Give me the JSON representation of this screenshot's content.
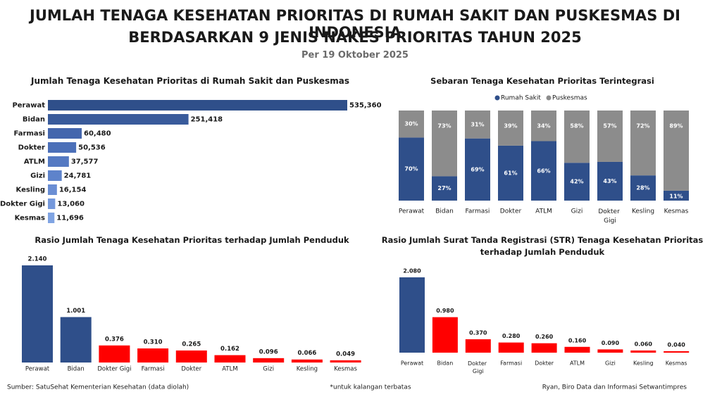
{
  "header": {
    "title_line1": "JUMLAH TENAGA KESEHATAN PRIORITAS DI RUMAH SAKIT DAN PUSKESMAS DI INDONESIA",
    "title_line2": "BERDASARKAN 9 JENIS NAKES PRIORITAS TAHUN 2025",
    "subtitle": "Per 19 Oktober 2025"
  },
  "chart_data": [
    {
      "type": "bar",
      "orientation": "horizontal",
      "title": "Jumlah Tenaga Kesehatan Prioritas di Rumah Sakit dan Puskesmas",
      "categories": [
        "Perawat",
        "Bidan",
        "Farmasi",
        "Dokter",
        "ATLM",
        "Gizi",
        "Kesling",
        "Dokter Gigi",
        "Kesmas"
      ],
      "values": [
        535360,
        251418,
        60480,
        50536,
        37577,
        24781,
        16154,
        13060,
        11696
      ],
      "value_labels": [
        "535,360",
        "251,418",
        "60,480",
        "50,536",
        "37,577",
        "24,781",
        "16,154",
        "13,060",
        "11,696"
      ],
      "colors": [
        "#2f4f8a",
        "#395b9b",
        "#4466ad",
        "#4b6fb8",
        "#5479c2",
        "#5e83cb",
        "#6a8ed4",
        "#7599dc",
        "#80a4e3"
      ]
    },
    {
      "type": "stacked_bar",
      "title": "Sebaran Tenaga Kesehatan Prioritas Terintegrasi",
      "categories": [
        "Perawat",
        "Bidan",
        "Farmasi",
        "Dokter",
        "ATLM",
        "Gizi",
        "Dokter Gigi",
        "Kesling",
        "Kesmas"
      ],
      "ylim": [
        0,
        100
      ],
      "series": [
        {
          "name": "Rumah Sakit",
          "color": "#2f4f8a",
          "values": [
            70,
            27,
            69,
            61,
            66,
            42,
            43,
            28,
            11
          ],
          "value_labels": [
            "70%",
            "27%",
            "69%",
            "61%",
            "66%",
            "42%",
            "43%",
            "28%",
            "11%"
          ]
        },
        {
          "name": "Puskesmas",
          "color": "#8c8c8c",
          "values": [
            30,
            73,
            31,
            39,
            34,
            58,
            57,
            72,
            89
          ],
          "value_labels": [
            "30%",
            "73%",
            "31%",
            "39%",
            "34%",
            "58%",
            "57%",
            "72%",
            "89%"
          ]
        }
      ]
    },
    {
      "type": "bar",
      "orientation": "vertical",
      "title": "Rasio Jumlah Tenaga Kesehatan Prioritas terhadap Jumlah Penduduk",
      "categories": [
        "Perawat",
        "Bidan",
        "Dokter Gigi",
        "Farmasi",
        "Dokter",
        "ATLM",
        "Gizi",
        "Kesling",
        "Kesmas"
      ],
      "values": [
        2.14,
        1.001,
        0.376,
        0.31,
        0.265,
        0.162,
        0.096,
        0.066,
        0.049
      ],
      "value_labels": [
        "2.140",
        "1.001",
        "0.376",
        "0.310",
        "0.265",
        "0.162",
        "0.096",
        "0.066",
        "0.049"
      ],
      "colors": [
        "#2f4f8a",
        "#2f4f8a",
        "#ff0000",
        "#ff0000",
        "#ff0000",
        "#ff0000",
        "#ff0000",
        "#ff0000",
        "#ff0000"
      ]
    },
    {
      "type": "bar",
      "orientation": "vertical",
      "title": "Rasio Jumlah Surat Tanda Registrasi (STR) Tenaga Kesehatan Prioritas terhadap Jumlah Penduduk",
      "categories": [
        "Perawat",
        "Bidan",
        "Dokter Gigi",
        "Farmasi",
        "Dokter",
        "ATLM",
        "Gizi",
        "Kesling",
        "Kesmas"
      ],
      "values": [
        2.08,
        0.98,
        0.37,
        0.28,
        0.26,
        0.16,
        0.09,
        0.06,
        0.04
      ],
      "value_labels": [
        "2.080",
        "0.980",
        "0.370",
        "0.280",
        "0.260",
        "0.160",
        "0.090",
        "0.060",
        "0.040"
      ],
      "colors": [
        "#2f4f8a",
        "#ff0000",
        "#ff0000",
        "#ff0000",
        "#ff0000",
        "#ff0000",
        "#ff0000",
        "#ff0000",
        "#ff0000"
      ]
    }
  ],
  "footer": {
    "source": "Sumber: SatuSehat Kementerian Kesehatan (data diolah)",
    "note": "*untuk kalangan terbatas",
    "credit": "Ryan, Biro Data dan Informasi Setwantimpres"
  }
}
